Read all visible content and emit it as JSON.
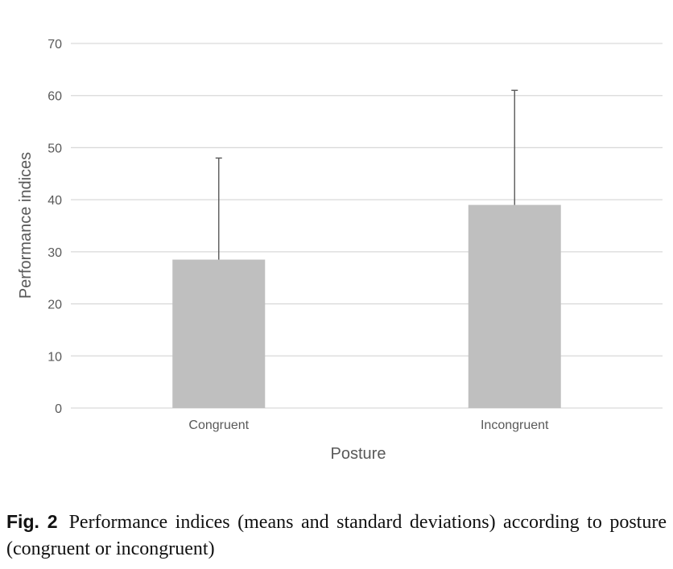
{
  "chart_data": {
    "type": "bar",
    "categories": [
      "Congruent",
      "Incongruent"
    ],
    "values": [
      28.5,
      39
    ],
    "error_plus": [
      19.5,
      22
    ],
    "xlabel": "Posture",
    "ylabel": "Performance indices",
    "ylim": [
      0,
      70
    ],
    "yticks": [
      0,
      10,
      20,
      30,
      40,
      50,
      60,
      70
    ],
    "grid": true,
    "bar_color": "#bfbfbf",
    "grid_color": "#d9d9d9",
    "error_color": "#595959"
  },
  "caption": {
    "label": "Fig. 2",
    "text": "Performance indices (means and standard deviations) according to posture (congruent or incongruent)"
  }
}
